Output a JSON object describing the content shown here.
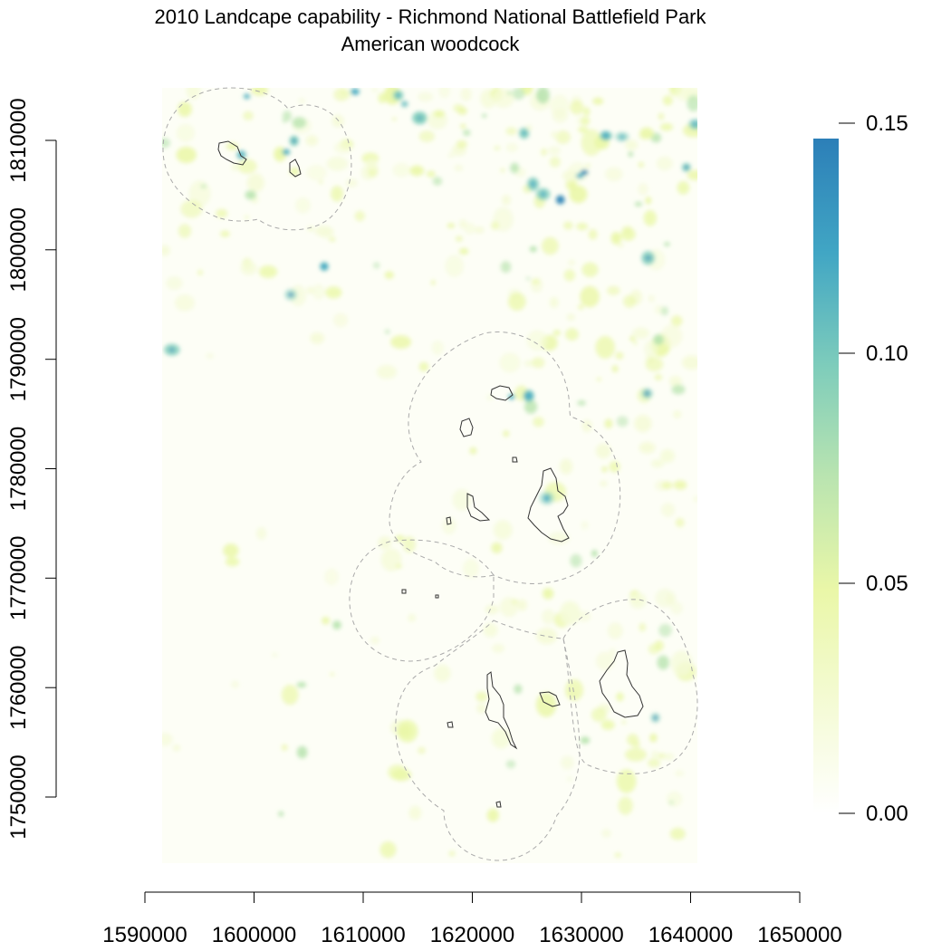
{
  "title": "2010 Landcape capability - Richmond National Battlefield Park",
  "subtitle": "American woodcock",
  "x_ticks": [
    "1590000",
    "1600000",
    "1610000",
    "1620000",
    "1630000",
    "1640000",
    "1650000"
  ],
  "y_ticks": [
    "1750000",
    "1760000",
    "1770000",
    "1780000",
    "1790000",
    "1800000",
    "1810000"
  ],
  "legend_ticks": [
    "0.00",
    "0.05",
    "0.10",
    "0.15"
  ],
  "colors": {
    "ramp": [
      "#ffffff",
      "#f5fbd8",
      "#eaf7a8",
      "#b9e4b0",
      "#7fcdbb",
      "#41a6c4",
      "#2c7fb8"
    ],
    "park_outline": "#333333",
    "buffer_outline": "#aaaaaa"
  },
  "chart_data": {
    "type": "heatmap",
    "title": "2010 Landcape capability - Richmond National Battlefield Park",
    "subtitle": "American woodcock",
    "xlim": [
      1590000,
      1650000
    ],
    "ylim": [
      1750000,
      1810000
    ],
    "x_ticks": [
      1590000,
      1600000,
      1610000,
      1620000,
      1630000,
      1640000,
      1650000
    ],
    "y_ticks": [
      1750000,
      1760000,
      1770000,
      1780000,
      1790000,
      1800000,
      1810000
    ],
    "value_range": [
      0.0,
      0.15
    ],
    "legend_ticks": [
      0.0,
      0.05,
      0.1,
      0.15
    ],
    "legend_position": "right"
  }
}
